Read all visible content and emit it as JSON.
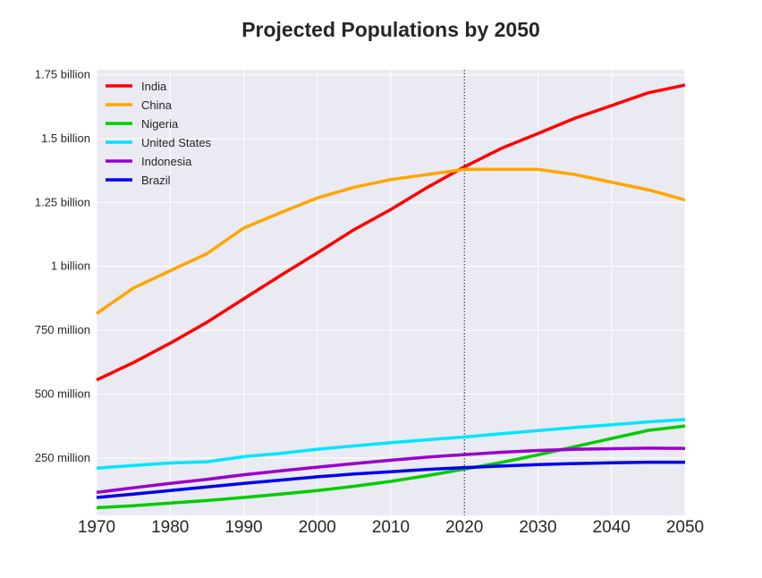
{
  "chart_data": {
    "type": "line",
    "title": "Projected Populations by 2050",
    "xlabel": "",
    "ylabel": "",
    "x": [
      1970,
      1975,
      1980,
      1985,
      1990,
      1995,
      2000,
      2005,
      2010,
      2015,
      2020,
      2025,
      2030,
      2035,
      2040,
      2045,
      2050
    ],
    "xticks": [
      1970,
      1980,
      1990,
      2000,
      2010,
      2020,
      2030,
      2040,
      2050
    ],
    "xtick_labels": [
      "1970",
      "1980",
      "1990",
      "2000",
      "2010",
      "2020",
      "2030",
      "2040",
      "2050"
    ],
    "yticks": [
      250000000,
      500000000,
      750000000,
      1000000000,
      1250000000,
      1500000000,
      1750000000
    ],
    "ytick_labels": [
      "250 million",
      "500 million",
      "750 million",
      "1 billion",
      "1.25 billion",
      "1.5 billion",
      "1.75 billion"
    ],
    "xlim": [
      1970,
      2050
    ],
    "ylim": [
      25000000,
      1770000000
    ],
    "grid": true,
    "legend_position": "top-left",
    "reference_line": {
      "x": 2020,
      "style": "dotted"
    },
    "series": [
      {
        "name": "India",
        "color": "#ff0000",
        "values": [
          555000000,
          623000000,
          699000000,
          781000000,
          873000000,
          964000000,
          1053000000,
          1144000000,
          1223000000,
          1310000000,
          1390000000,
          1462000000,
          1520000000,
          1580000000,
          1630000000,
          1680000000,
          1710000000
        ]
      },
      {
        "name": "China",
        "color": "#ffa500",
        "values": [
          815000000,
          915000000,
          983000000,
          1050000000,
          1150000000,
          1210000000,
          1268000000,
          1310000000,
          1340000000,
          1360000000,
          1380000000,
          1380000000,
          1380000000,
          1360000000,
          1330000000,
          1300000000,
          1260000000
        ]
      },
      {
        "name": "Nigeria",
        "color": "#00cc00",
        "values": [
          55000000,
          63000000,
          73000000,
          83000000,
          95000000,
          108000000,
          122000000,
          139000000,
          158000000,
          181000000,
          206000000,
          232000000,
          262000000,
          294000000,
          326000000,
          358000000,
          375000000
        ]
      },
      {
        "name": "United States",
        "color": "#00e5ff",
        "values": [
          210000000,
          220000000,
          230000000,
          235000000,
          255000000,
          268000000,
          284000000,
          297000000,
          310000000,
          321000000,
          332000000,
          345000000,
          357000000,
          369000000,
          380000000,
          391000000,
          400000000
        ]
      },
      {
        "name": "Indonesia",
        "color": "#9900cc",
        "values": [
          115000000,
          133000000,
          150000000,
          166000000,
          184000000,
          199000000,
          214000000,
          228000000,
          241000000,
          253000000,
          263000000,
          272000000,
          279000000,
          284000000,
          286000000,
          288000000,
          287000000
        ]
      },
      {
        "name": "Brazil",
        "color": "#0000ee",
        "values": [
          95000000,
          108000000,
          122000000,
          136000000,
          150000000,
          163000000,
          176000000,
          187000000,
          196000000,
          205000000,
          212000000,
          218000000,
          224000000,
          228000000,
          231000000,
          233000000,
          233000000
        ]
      }
    ]
  }
}
